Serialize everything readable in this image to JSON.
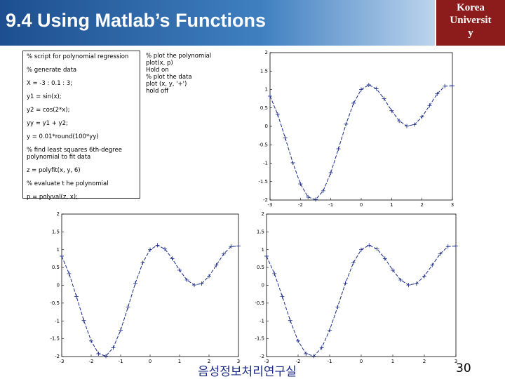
{
  "header": {
    "title": "9.4 Using Matlab’s Functions",
    "logo": [
      "Korea",
      "Universit",
      "y"
    ]
  },
  "code_left": [
    "% script for polynomial regression",
    "% generate data",
    "X = -3 : 0.1 : 3;",
    "y1 = sin(x);",
    "y2 = cos(2*x);",
    "yy = y1 + y2;",
    "y = 0.01*round(100*yy)",
    "% find least squares 6th-degree polynomial to fit data",
    "z = polyfit(x, y, 6)",
    "% evaluate t he polynomial",
    "p = polyval(z, x);"
  ],
  "code_right": [
    "% plot the polynomial",
    "plot(x, p)",
    "Hold on",
    "% plot the data",
    "plot (x, y, '+')",
    "hold off"
  ],
  "figure": {
    "x": [
      -3,
      -2.75,
      -2.5,
      -2.25,
      -2,
      -1.75,
      -1.5,
      -1.25,
      -1,
      -0.75,
      -0.5,
      -0.25,
      0,
      0.25,
      0.5,
      0.75,
      1,
      1.25,
      1.5,
      1.75,
      2,
      2.25,
      2.5,
      2.75,
      3
    ],
    "values": [
      0.819,
      0.327,
      -0.315,
      -0.989,
      -1.563,
      -1.92,
      -1.987,
      -1.75,
      -1.258,
      -0.611,
      0.061,
      0.63,
      1.0,
      1.125,
      1.02,
      0.752,
      0.425,
      0.148,
      0.008,
      0.048,
      0.256,
      0.567,
      0.882,
      1.09,
      1.101
    ],
    "xlim": [
      -3,
      3
    ],
    "ylim": [
      -2,
      2
    ],
    "xticks": [
      -3,
      -2,
      -1,
      0,
      1,
      2,
      3
    ],
    "yticks": [
      -2,
      -1.5,
      -1,
      -0.5,
      0,
      0.5,
      1,
      1.5,
      2
    ]
  },
  "footer": {
    "lab": "음성정보처리연구실",
    "page": "30"
  }
}
